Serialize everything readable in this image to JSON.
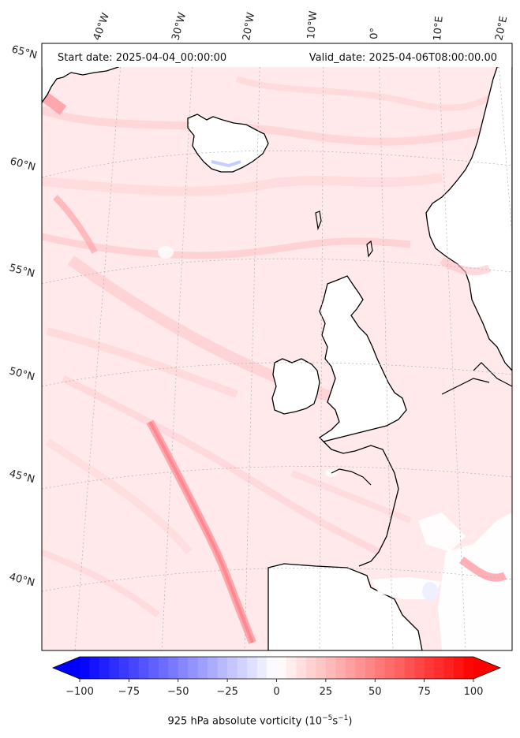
{
  "header": {
    "start_date": "Start date: 2025-04-04_00:00:00",
    "valid_date": "Valid_date: 2025-04-06T08:00:00.00"
  },
  "map": {
    "lon_labels": [
      "40°W",
      "30°W",
      "20°W",
      "10°W",
      "0°",
      "10°E",
      "20°E"
    ],
    "lat_labels": [
      "65°N",
      "60°N",
      "55°N",
      "50°N",
      "45°N",
      "40°N"
    ]
  },
  "colorbar": {
    "title": "925 hPa absolute vorticity (10",
    "title_exp1": "−5",
    "title_mid": "s",
    "title_exp2": "−1",
    "title_end": ")",
    "ticks": [
      "−100",
      "−75",
      "−50",
      "−25",
      "0",
      "25",
      "50",
      "75",
      "100"
    ],
    "vmin": -100,
    "vmax": 100,
    "extend": "both",
    "min_color": "#0000ff",
    "mid_color": "#ffffff",
    "max_color": "#ff0000"
  },
  "colors": {
    "background_field": "#ffe9ea",
    "land": "#ffffff",
    "coastline": "#000000",
    "gridline": "#b0b0b0"
  }
}
